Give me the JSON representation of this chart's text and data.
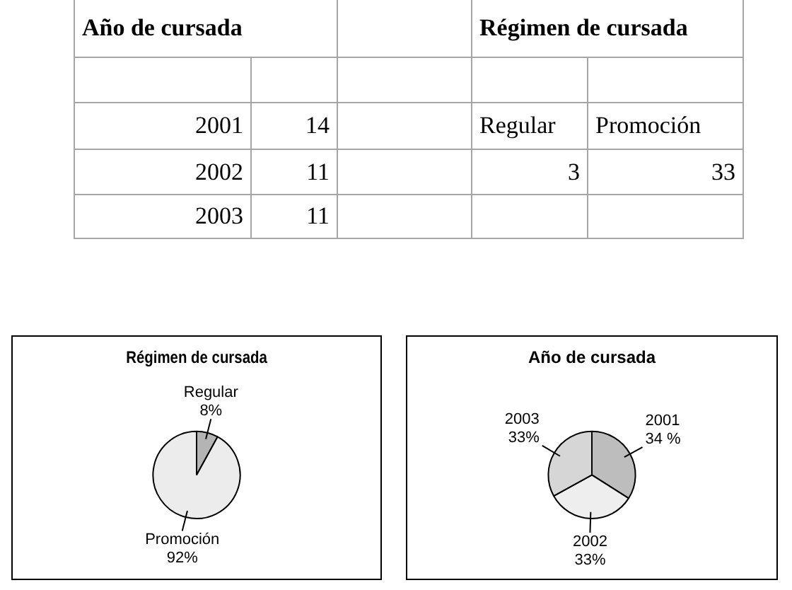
{
  "chart_data": [
    {
      "type": "other",
      "annotations": [
        "Año de cursada",
        "Régimen de cursada",
        "2001",
        "14",
        "Regular",
        "Promoción",
        "2002",
        "11",
        "3",
        "33",
        "2003",
        "11"
      ]
    },
    {
      "type": "pie",
      "title": "Régimen de cursada",
      "categories": [
        "Regular",
        "Promoción"
      ],
      "values": [
        8,
        92
      ],
      "colors": [
        "#b4b4b4",
        "#ececec"
      ],
      "value_labels": [
        "8%",
        "92%"
      ]
    },
    {
      "type": "pie",
      "title": "Año de cursada",
      "categories": [
        "2001",
        "2002",
        "2003"
      ],
      "values": [
        34,
        33,
        33
      ],
      "colors": [
        "#bdbdbd",
        "#eeeeee",
        "#d6d6d6"
      ],
      "value_labels": [
        "34 %",
        "33%",
        "33%"
      ]
    }
  ]
}
